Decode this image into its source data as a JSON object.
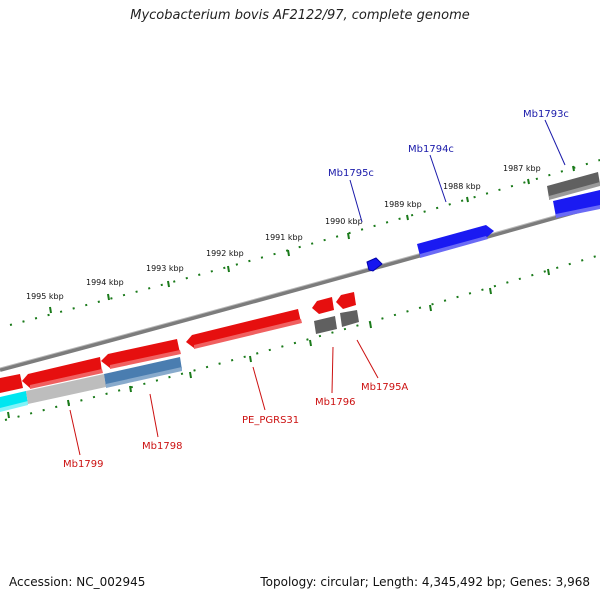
{
  "title": "Mycobacterium bovis AF2122/97, complete genome",
  "footer": {
    "accession": "Accession: NC_002945",
    "stats": "Topology: circular; Length: 4,345,492 bp; Genes: 3,968"
  },
  "colors": {
    "forward_gene": "#2222ee",
    "reverse_gene": "#ee1111",
    "label_forward": "#1a1aaa",
    "label_reverse": "#cc1111",
    "tick": "#1a7a1a",
    "backbone": "#888888",
    "other_feature": "#666666",
    "light_feature": "#bbbbbb",
    "steel_feature": "#4477aa",
    "cyan_feature": "#00e5ee"
  },
  "scale_labels": [
    "1987 kbp",
    "1988 kbp",
    "1989 kbp",
    "1990 kbp",
    "1991 kbp",
    "1992 kbp",
    "1993 kbp",
    "1994 kbp",
    "1995 kbp"
  ],
  "gene_labels": {
    "Mb1793c": "Mb1793c",
    "Mb1794c": "Mb1794c",
    "Mb1795c": "Mb1795c",
    "Mb1795A": "Mb1795A",
    "Mb1796": "Mb1796",
    "PE_PGRS31": "PE_PGRS31",
    "Mb1798": "Mb1798",
    "Mb1799": "Mb1799"
  }
}
